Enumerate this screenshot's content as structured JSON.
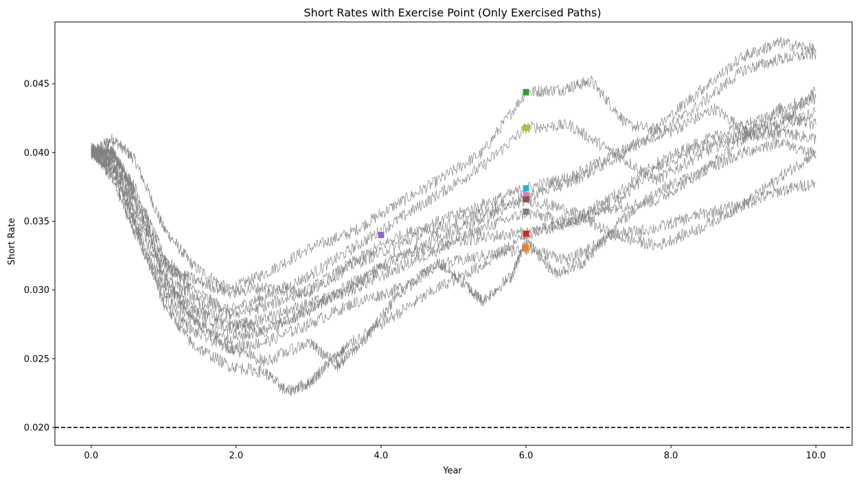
{
  "chart_data": {
    "type": "line",
    "title": "Short Rates with Exercise Point (Only Exercised Paths)",
    "xlabel": "Year",
    "ylabel": "Short Rate",
    "xlim": [
      -0.5,
      10.5
    ],
    "ylim": [
      0.0187,
      0.0495
    ],
    "x_ticks": [
      0.0,
      2.0,
      4.0,
      6.0,
      8.0,
      10.0
    ],
    "x_tick_labels": [
      "0.0",
      "2.0",
      "4.0",
      "6.0",
      "8.0",
      "10.0"
    ],
    "y_ticks": [
      0.02,
      0.025,
      0.03,
      0.035,
      0.04,
      0.045
    ],
    "y_tick_labels": [
      "0.020",
      "0.025",
      "0.030",
      "0.035",
      "0.040",
      "0.045"
    ],
    "grid": false,
    "legend": "none",
    "path_color": "#808080",
    "reference_line": {
      "y": 0.02,
      "style": "dashed",
      "color": "#000000"
    },
    "series": [
      {
        "color": "#808080",
        "points": [
          [
            0,
            0.04
          ],
          [
            0.3,
            0.041
          ],
          [
            0.6,
            0.0395
          ],
          [
            1.0,
            0.0345
          ],
          [
            1.4,
            0.0318
          ],
          [
            1.9,
            0.03
          ],
          [
            2.4,
            0.0312
          ],
          [
            3.0,
            0.033
          ],
          [
            3.6,
            0.0342
          ],
          [
            4.2,
            0.0362
          ],
          [
            4.8,
            0.038
          ],
          [
            5.4,
            0.04
          ],
          [
            6.0,
            0.0444
          ],
          [
            6.5,
            0.0446
          ],
          [
            6.9,
            0.0452
          ],
          [
            7.4,
            0.042
          ],
          [
            8.0,
            0.0415
          ],
          [
            8.6,
            0.0432
          ],
          [
            9.2,
            0.041
          ],
          [
            10.0,
            0.043
          ]
        ]
      },
      {
        "color": "#808080",
        "points": [
          [
            0,
            0.0402
          ],
          [
            0.3,
            0.04
          ],
          [
            0.6,
            0.0375
          ],
          [
            1.0,
            0.0325
          ],
          [
            1.4,
            0.03
          ],
          [
            1.9,
            0.0285
          ],
          [
            2.4,
            0.0295
          ],
          [
            3.0,
            0.031
          ],
          [
            3.6,
            0.033
          ],
          [
            4.2,
            0.035
          ],
          [
            4.8,
            0.037
          ],
          [
            5.4,
            0.039
          ],
          [
            6.0,
            0.0418
          ],
          [
            6.6,
            0.042
          ],
          [
            7.2,
            0.04
          ],
          [
            7.8,
            0.038
          ],
          [
            8.4,
            0.0398
          ],
          [
            9.0,
            0.0415
          ],
          [
            9.5,
            0.042
          ],
          [
            10.0,
            0.0445
          ]
        ]
      },
      {
        "color": "#808080",
        "points": [
          [
            0,
            0.0401
          ],
          [
            0.3,
            0.0398
          ],
          [
            0.6,
            0.037
          ],
          [
            1.0,
            0.032
          ],
          [
            1.4,
            0.0295
          ],
          [
            1.9,
            0.0282
          ],
          [
            2.4,
            0.0288
          ],
          [
            3.0,
            0.03
          ],
          [
            3.6,
            0.032
          ],
          [
            4.2,
            0.0338
          ],
          [
            4.8,
            0.035
          ],
          [
            5.4,
            0.0362
          ],
          [
            6.0,
            0.0374
          ],
          [
            6.6,
            0.0382
          ],
          [
            7.2,
            0.0398
          ],
          [
            7.8,
            0.0412
          ],
          [
            8.4,
            0.0435
          ],
          [
            9.0,
            0.046
          ],
          [
            9.5,
            0.0468
          ],
          [
            10.0,
            0.0472
          ]
        ]
      },
      {
        "color": "#808080",
        "points": [
          [
            0,
            0.0403
          ],
          [
            0.3,
            0.0395
          ],
          [
            0.6,
            0.0365
          ],
          [
            1.0,
            0.0318
          ],
          [
            1.4,
            0.0308
          ],
          [
            1.9,
            0.0298
          ],
          [
            2.4,
            0.0302
          ],
          [
            3.0,
            0.0298
          ],
          [
            3.6,
            0.0318
          ],
          [
            4.2,
            0.0332
          ],
          [
            4.8,
            0.0345
          ],
          [
            5.4,
            0.0356
          ],
          [
            6.0,
            0.0368
          ],
          [
            6.6,
            0.0378
          ],
          [
            7.2,
            0.0395
          ],
          [
            7.8,
            0.0418
          ],
          [
            8.4,
            0.0445
          ],
          [
            9.0,
            0.047
          ],
          [
            9.5,
            0.048
          ],
          [
            10.0,
            0.0475
          ]
        ]
      },
      {
        "color": "#808080",
        "points": [
          [
            0,
            0.04
          ],
          [
            0.3,
            0.0392
          ],
          [
            0.6,
            0.036
          ],
          [
            1.0,
            0.0312
          ],
          [
            1.4,
            0.029
          ],
          [
            1.9,
            0.0275
          ],
          [
            2.4,
            0.0272
          ],
          [
            3.0,
            0.0285
          ],
          [
            3.6,
            0.0305
          ],
          [
            4.2,
            0.0322
          ],
          [
            4.8,
            0.0338
          ],
          [
            5.4,
            0.0352
          ],
          [
            6.0,
            0.0366
          ],
          [
            6.6,
            0.0358
          ],
          [
            7.2,
            0.034
          ],
          [
            7.8,
            0.0332
          ],
          [
            8.4,
            0.0345
          ],
          [
            9.0,
            0.0362
          ],
          [
            9.5,
            0.0382
          ],
          [
            10.0,
            0.04
          ]
        ]
      },
      {
        "color": "#808080",
        "points": [
          [
            0,
            0.0399
          ],
          [
            0.3,
            0.0388
          ],
          [
            0.6,
            0.0355
          ],
          [
            1.0,
            0.0305
          ],
          [
            1.4,
            0.0285
          ],
          [
            1.9,
            0.0272
          ],
          [
            2.4,
            0.028
          ],
          [
            3.0,
            0.029
          ],
          [
            3.6,
            0.03
          ],
          [
            4.2,
            0.0315
          ],
          [
            4.8,
            0.033
          ],
          [
            5.4,
            0.0345
          ],
          [
            6.0,
            0.0356
          ],
          [
            6.6,
            0.035
          ],
          [
            7.2,
            0.036
          ],
          [
            7.8,
            0.0365
          ],
          [
            8.4,
            0.0385
          ],
          [
            9.0,
            0.041
          ],
          [
            9.5,
            0.0432
          ],
          [
            10.0,
            0.044
          ]
        ]
      },
      {
        "color": "#808080",
        "points": [
          [
            0,
            0.0401
          ],
          [
            0.3,
            0.0385
          ],
          [
            0.6,
            0.035
          ],
          [
            1.0,
            0.03
          ],
          [
            1.4,
            0.0278
          ],
          [
            1.9,
            0.0265
          ],
          [
            2.4,
            0.027
          ],
          [
            3.0,
            0.0285
          ],
          [
            3.6,
            0.0302
          ],
          [
            4.2,
            0.0325
          ],
          [
            4.8,
            0.0332
          ],
          [
            5.4,
            0.0338
          ],
          [
            6.0,
            0.0342
          ],
          [
            6.6,
            0.0348
          ],
          [
            7.2,
            0.0362
          ],
          [
            7.8,
            0.0388
          ],
          [
            8.4,
            0.0405
          ],
          [
            9.0,
            0.0412
          ],
          [
            9.5,
            0.0415
          ],
          [
            10.0,
            0.041
          ]
        ]
      },
      {
        "color": "#808080",
        "points": [
          [
            0,
            0.0402
          ],
          [
            0.3,
            0.038
          ],
          [
            0.6,
            0.0342
          ],
          [
            1.0,
            0.0295
          ],
          [
            1.4,
            0.027
          ],
          [
            1.9,
            0.0258
          ],
          [
            2.4,
            0.0262
          ],
          [
            3.0,
            0.0275
          ],
          [
            3.6,
            0.029
          ],
          [
            4.2,
            0.03
          ],
          [
            4.8,
            0.0318
          ],
          [
            5.4,
            0.0325
          ],
          [
            6.0,
            0.033
          ],
          [
            6.6,
            0.0322
          ],
          [
            7.2,
            0.034
          ],
          [
            7.8,
            0.0345
          ],
          [
            8.4,
            0.0355
          ],
          [
            9.0,
            0.0362
          ],
          [
            9.5,
            0.0372
          ],
          [
            10.0,
            0.0378
          ]
        ]
      },
      {
        "color": "#808080",
        "points": [
          [
            0,
            0.04
          ],
          [
            0.3,
            0.039
          ],
          [
            0.6,
            0.0348
          ],
          [
            1.0,
            0.029
          ],
          [
            1.4,
            0.026
          ],
          [
            1.9,
            0.0245
          ],
          [
            2.4,
            0.024
          ],
          [
            2.7,
            0.0226
          ],
          [
            3.0,
            0.0232
          ],
          [
            3.3,
            0.0248
          ],
          [
            3.6,
            0.0262
          ],
          [
            4.2,
            0.0282
          ],
          [
            4.8,
            0.0302
          ],
          [
            5.4,
            0.0318
          ],
          [
            6.0,
            0.034
          ],
          [
            6.6,
            0.035
          ],
          [
            7.2,
            0.0368
          ],
          [
            7.8,
            0.0392
          ],
          [
            8.4,
            0.0408
          ],
          [
            9.0,
            0.042
          ],
          [
            9.5,
            0.0428
          ],
          [
            10.0,
            0.042
          ]
        ]
      },
      {
        "color": "#808080",
        "points": [
          [
            0,
            0.0401
          ],
          [
            0.3,
            0.0402
          ],
          [
            0.6,
            0.0368
          ],
          [
            1.0,
            0.031
          ],
          [
            1.4,
            0.028
          ],
          [
            1.9,
            0.0258
          ],
          [
            2.4,
            0.0248
          ],
          [
            3.0,
            0.0262
          ],
          [
            3.4,
            0.0245
          ],
          [
            3.8,
            0.0265
          ],
          [
            4.2,
            0.0295
          ],
          [
            4.8,
            0.032
          ],
          [
            5.2,
            0.0302
          ],
          [
            5.4,
            0.0292
          ],
          [
            5.8,
            0.031
          ],
          [
            6.0,
            0.0336
          ],
          [
            6.4,
            0.0312
          ],
          [
            6.8,
            0.032
          ],
          [
            7.2,
            0.0345
          ],
          [
            7.8,
            0.0372
          ],
          [
            8.4,
            0.0385
          ],
          [
            9.0,
            0.04
          ],
          [
            9.5,
            0.0408
          ],
          [
            10.0,
            0.0398
          ]
        ]
      }
    ],
    "exercise_points": [
      {
        "x": 6.0,
        "y": 0.0444,
        "color": "#2ca02c"
      },
      {
        "x": 6.0,
        "y": 0.0418,
        "color": "#bcbd22"
      },
      {
        "x": 6.0,
        "y": 0.0374,
        "color": "#17becf"
      },
      {
        "x": 6.0,
        "y": 0.0369,
        "color": "#e377c2"
      },
      {
        "x": 6.0,
        "y": 0.0366,
        "color": "#8c564b"
      },
      {
        "x": 6.0,
        "y": 0.0357,
        "color": "#7f7f7f"
      },
      {
        "x": 6.0,
        "y": 0.0341,
        "color": "#d62728"
      },
      {
        "x": 6.0,
        "y": 0.0331,
        "color": "#ff7f0e"
      },
      {
        "x": 4.0,
        "y": 0.034,
        "color": "#9467bd"
      }
    ]
  }
}
